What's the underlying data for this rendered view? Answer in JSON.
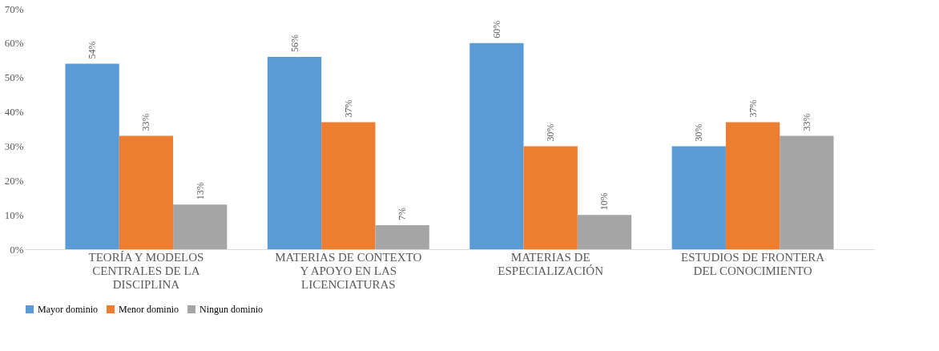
{
  "chart_data": {
    "type": "bar",
    "categories": [
      "TEORÍA Y MODELOS CENTRALES DE LA DISCIPLINA",
      "MATERIAS DE CONTEXTO Y APOYO EN LAS LICENCIATURAS",
      "MATERIAS DE ESPECIALIZACIÓN",
      "ESTUDIOS DE FRONTERA DEL CONOCIMIENTO"
    ],
    "series": [
      {
        "name": "Mayor dominio",
        "color": "#5b9bd5",
        "values": [
          54,
          56,
          60,
          30
        ],
        "value_labels": [
          "54%",
          "56%",
          "60%",
          "30%"
        ]
      },
      {
        "name": "Menor dominio",
        "color": "#ed7d31",
        "values": [
          33,
          37,
          30,
          37
        ],
        "value_labels": [
          "33%",
          "37%",
          "30%",
          "37%"
        ]
      },
      {
        "name": "Ningun dominio",
        "color": "#a5a5a5",
        "values": [
          13,
          7,
          10,
          33
        ],
        "value_labels": [
          "13%",
          "7%",
          "10%",
          "33%"
        ]
      }
    ],
    "ylim": [
      0,
      70
    ],
    "yticks": [
      {
        "value": 0,
        "label": "0%"
      },
      {
        "value": 10,
        "label": "10%"
      },
      {
        "value": 20,
        "label": "20%"
      },
      {
        "value": 30,
        "label": "30%"
      },
      {
        "value": 40,
        "label": "40%"
      },
      {
        "value": 50,
        "label": "50%"
      },
      {
        "value": 60,
        "label": "60%"
      },
      {
        "value": 70,
        "label": "70%"
      }
    ],
    "grid": false,
    "legend": "bottom"
  }
}
